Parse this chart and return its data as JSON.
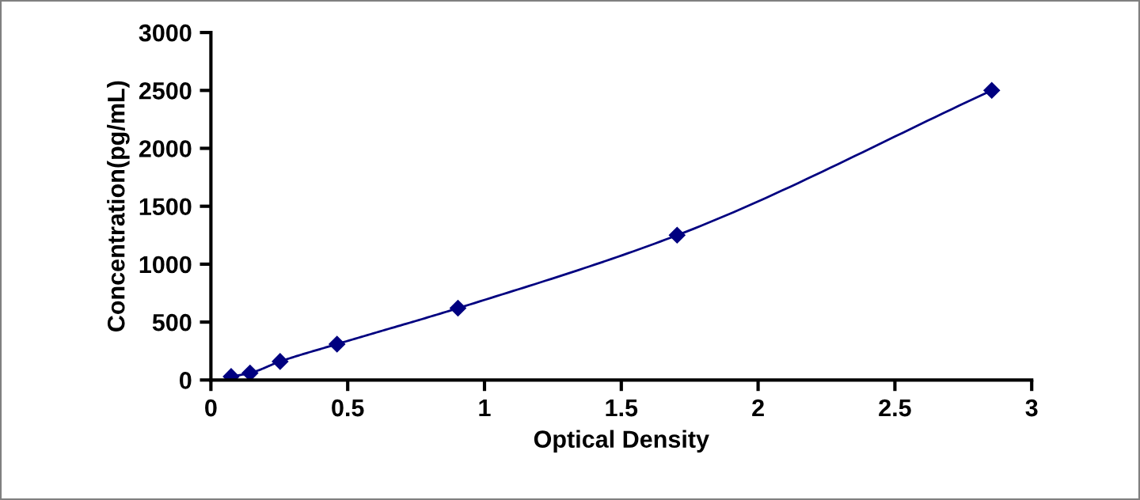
{
  "chart_data": {
    "type": "line",
    "xlabel": "Optical Density",
    "ylabel": "Concentration(pg/mL)",
    "xlim": [
      0,
      3
    ],
    "xticks": [
      0,
      0.5,
      1,
      1.5,
      2,
      2.5,
      3
    ],
    "ylim": [
      0,
      3000
    ],
    "yticks": [
      0,
      500,
      1000,
      1500,
      2000,
      2500,
      3000
    ],
    "grid": false,
    "marker": "diamond",
    "line_style": "solid",
    "series": [
      {
        "color": "#000080",
        "x": [
          0.074,
          0.143,
          0.253,
          0.461,
          0.903,
          1.704,
          2.854
        ],
        "values": [
          30,
          60,
          160,
          310,
          620,
          1250,
          2500
        ]
      }
    ]
  }
}
